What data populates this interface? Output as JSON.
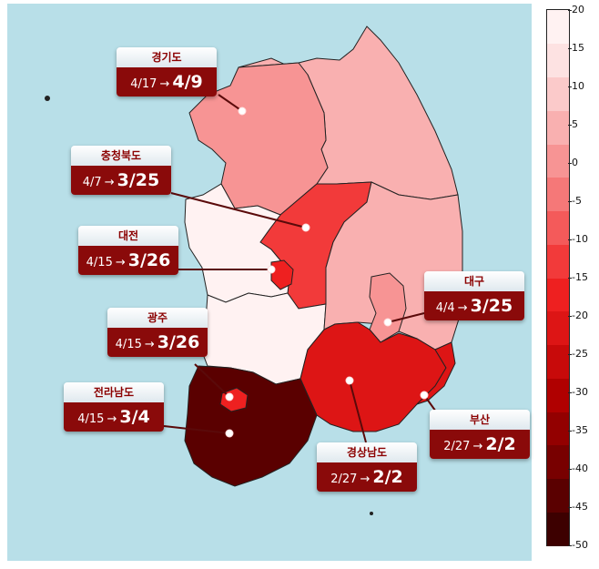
{
  "colorbar": {
    "ticks": [
      "20",
      "15",
      "10",
      "5",
      "0",
      "-5",
      "-10",
      "-15",
      "-20",
      "-25",
      "-30",
      "-35",
      "-40",
      "-45",
      "-50"
    ],
    "min": -50,
    "max": 20,
    "colors": [
      "#3d0000",
      "#5a0000",
      "#780000",
      "#930000",
      "#b00000",
      "#c80a0a",
      "#dd1515",
      "#ee2020",
      "#f23a3a",
      "#f45a5a",
      "#f57878",
      "#f79494",
      "#f9b0b0",
      "#fbcaca",
      "#fde2e2",
      "#fff2f2"
    ]
  },
  "regions": {
    "gyeonggi": {
      "value": 2
    },
    "gangwon": {
      "value": 6
    },
    "chungbuk": {
      "value": -13
    },
    "chungnam": {
      "value": 18
    },
    "daejeon": {
      "value": -16
    },
    "jeonbuk": {
      "value": 18
    },
    "gyeongbuk": {
      "value": 6
    },
    "daegu": {
      "value": 0
    },
    "gwangju": {
      "value": -18
    },
    "jeonnam": {
      "value": -45
    },
    "gyeongnam": {
      "value": -22
    },
    "busan": {
      "value": -22
    }
  },
  "callouts": [
    {
      "id": "gyeonggi",
      "name": "경기도",
      "from": "4/17",
      "arrow": "→",
      "to": "4/9"
    },
    {
      "id": "chungbuk",
      "name": "충청북도",
      "from": "4/7",
      "arrow": "→",
      "to": "3/25"
    },
    {
      "id": "daejeon",
      "name": "대전",
      "from": "4/15",
      "arrow": "→",
      "to": "3/26"
    },
    {
      "id": "gwangju",
      "name": "광주",
      "from": "4/15",
      "arrow": "→",
      "to": "3/26"
    },
    {
      "id": "jeonnam",
      "name": "전라남도",
      "from": "4/15",
      "arrow": "→",
      "to": "3/4"
    },
    {
      "id": "daegu",
      "name": "대구",
      "from": "4/4",
      "arrow": "→",
      "to": "3/25"
    },
    {
      "id": "busan",
      "name": "부산",
      "from": "2/27",
      "arrow": "→",
      "to": "2/2"
    },
    {
      "id": "gyeongnam",
      "name": "경상남도",
      "from": "2/27",
      "arrow": "→",
      "to": "2/2"
    }
  ]
}
